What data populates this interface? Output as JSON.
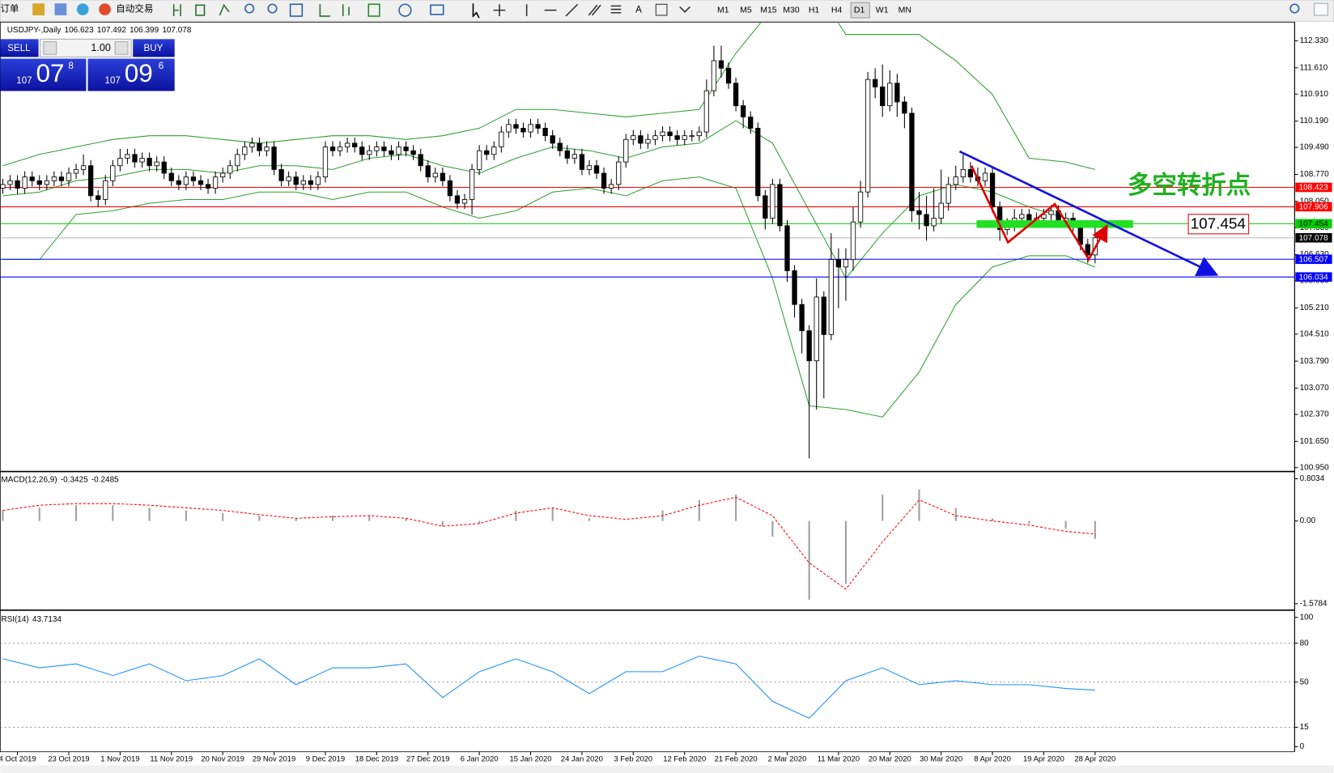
{
  "toolbar": {
    "order": "订单",
    "auto_trade": "自动交易",
    "timeframes": [
      "M1",
      "M5",
      "M15",
      "M30",
      "H1",
      "H4",
      "D1",
      "W1",
      "MN"
    ],
    "active": "D1"
  },
  "trade_panel": {
    "sell": "SELL",
    "lot": "1.00",
    "buy": "BUY",
    "bid": {
      "big": "107",
      "main": "07",
      "pip": "8"
    },
    "ask": {
      "big": "107",
      "main": "09",
      "pip": "6"
    }
  },
  "chart_data": {
    "type": "candlestick",
    "symbol": "USDJPY-,Daily",
    "up_color": "#ffffff",
    "down_color": "#000000",
    "categories": [
      null,
      null,
      "4 Oct 2019",
      null,
      null,
      null,
      null,
      null,
      null,
      "23 Oct 2019",
      null,
      null,
      null,
      null,
      null,
      null,
      "1 Nov 2019",
      null,
      null,
      null,
      null,
      null,
      null,
      "11 Nov 2019",
      null,
      null,
      null,
      null,
      null,
      null,
      "20 Nov 2019",
      null,
      null,
      null,
      null,
      null,
      null,
      "29 Nov 2019",
      null,
      null,
      null,
      null,
      null,
      null,
      "9 Dec 2019",
      null,
      null,
      null,
      null,
      null,
      null,
      "18 Dec 2019",
      null,
      null,
      null,
      null,
      null,
      null,
      "27 Dec 2019",
      null,
      null,
      null,
      null,
      null,
      null,
      "6 Jan 2020",
      null,
      null,
      null,
      null,
      null,
      null,
      "15 Jan 2020",
      null,
      null,
      null,
      null,
      null,
      null,
      "24 Jan 2020",
      null,
      null,
      null,
      null,
      null,
      null,
      "3 Feb 2020",
      null,
      null,
      null,
      null,
      null,
      null,
      "12 Feb 2020",
      null,
      null,
      null,
      null,
      null,
      null,
      "21 Feb 2020",
      null,
      null,
      null,
      null,
      null,
      null,
      "2 Mar 2020",
      null,
      null,
      null,
      null,
      null,
      null,
      "11 Mar 2020",
      null,
      null,
      null,
      null,
      null,
      null,
      "20 Mar 2020",
      null,
      null,
      null,
      null,
      null,
      null,
      "30 Mar 2020",
      null,
      null,
      null,
      null,
      null,
      null,
      "8 Apr 2020",
      null,
      null,
      null,
      null,
      null,
      null,
      "19 Apr 2020",
      null,
      null,
      null,
      null,
      null,
      null,
      "28 Apr 2020"
    ],
    "ohlc": [
      [
        108.4,
        108.65,
        108.25,
        108.5
      ],
      [
        108.5,
        108.75,
        108.35,
        108.6
      ],
      [
        108.6,
        108.75,
        108.25,
        108.4
      ],
      [
        108.4,
        108.85,
        108.25,
        108.7
      ],
      [
        108.7,
        108.85,
        108.45,
        108.6
      ],
      [
        108.6,
        108.75,
        108.35,
        108.5
      ],
      [
        108.5,
        108.75,
        108.35,
        108.6
      ],
      [
        108.6,
        108.85,
        108.45,
        108.7
      ],
      [
        108.7,
        108.85,
        108.45,
        108.6
      ],
      [
        108.6,
        108.95,
        108.45,
        108.8
      ],
      [
        108.8,
        109.05,
        108.65,
        108.9
      ],
      [
        108.9,
        109.3,
        108.75,
        109.0
      ],
      [
        109.0,
        109.15,
        108.05,
        108.2
      ],
      [
        108.2,
        108.35,
        107.9,
        108.1
      ],
      [
        108.1,
        108.75,
        107.95,
        108.6
      ],
      [
        108.6,
        109.15,
        108.45,
        109.0
      ],
      [
        109.0,
        109.45,
        108.85,
        109.2
      ],
      [
        109.2,
        109.45,
        109.05,
        109.3
      ],
      [
        109.3,
        109.45,
        108.95,
        109.1
      ],
      [
        109.1,
        109.35,
        108.95,
        109.2
      ],
      [
        109.2,
        109.35,
        108.85,
        109.0
      ],
      [
        109.0,
        109.25,
        108.85,
        109.1
      ],
      [
        109.1,
        109.25,
        108.65,
        108.8
      ],
      [
        108.8,
        108.95,
        108.45,
        108.6
      ],
      [
        108.6,
        108.75,
        108.35,
        108.5
      ],
      [
        108.5,
        108.85,
        108.35,
        108.7
      ],
      [
        108.7,
        108.85,
        108.45,
        108.6
      ],
      [
        108.6,
        108.75,
        108.35,
        108.5
      ],
      [
        108.5,
        108.65,
        108.25,
        108.4
      ],
      [
        108.4,
        108.85,
        108.25,
        108.7
      ],
      [
        108.7,
        108.95,
        108.55,
        108.8
      ],
      [
        108.8,
        109.15,
        108.65,
        109.0
      ],
      [
        109.0,
        109.45,
        108.85,
        109.3
      ],
      [
        109.3,
        109.65,
        109.15,
        109.5
      ],
      [
        109.5,
        109.75,
        109.35,
        109.6
      ],
      [
        109.6,
        109.75,
        109.25,
        109.4
      ],
      [
        109.4,
        109.65,
        109.25,
        109.5
      ],
      [
        109.5,
        109.65,
        108.75,
        108.9
      ],
      [
        108.9,
        109.05,
        108.45,
        108.6
      ],
      [
        108.6,
        108.85,
        108.45,
        108.7
      ],
      [
        108.7,
        108.85,
        108.35,
        108.5
      ],
      [
        108.5,
        108.75,
        108.35,
        108.6
      ],
      [
        108.6,
        108.75,
        108.35,
        108.5
      ],
      [
        108.5,
        108.85,
        108.35,
        108.7
      ],
      [
        108.7,
        109.65,
        108.55,
        109.5
      ],
      [
        109.5,
        109.65,
        109.25,
        109.4
      ],
      [
        109.4,
        109.65,
        109.25,
        109.5
      ],
      [
        109.5,
        109.75,
        109.35,
        109.6
      ],
      [
        109.6,
        109.75,
        109.35,
        109.5
      ],
      [
        109.5,
        109.65,
        109.15,
        109.3
      ],
      [
        109.3,
        109.55,
        109.15,
        109.4
      ],
      [
        109.4,
        109.65,
        109.25,
        109.5
      ],
      [
        109.5,
        109.65,
        109.25,
        109.4
      ],
      [
        109.4,
        109.55,
        109.15,
        109.3
      ],
      [
        109.3,
        109.65,
        109.15,
        109.5
      ],
      [
        109.5,
        109.65,
        109.25,
        109.4
      ],
      [
        109.4,
        109.55,
        109.15,
        109.3
      ],
      [
        109.3,
        109.45,
        108.85,
        109.0
      ],
      [
        109.0,
        109.15,
        108.55,
        108.7
      ],
      [
        108.7,
        108.95,
        108.55,
        108.8
      ],
      [
        108.8,
        108.95,
        108.45,
        108.6
      ],
      [
        108.6,
        108.75,
        108.05,
        108.2
      ],
      [
        108.2,
        108.35,
        107.85,
        108.0
      ],
      [
        108.0,
        108.25,
        107.85,
        108.1
      ],
      [
        108.1,
        109.05,
        107.7,
        108.9
      ],
      [
        108.9,
        109.55,
        108.75,
        109.4
      ],
      [
        109.4,
        109.55,
        109.15,
        109.3
      ],
      [
        109.3,
        109.65,
        109.15,
        109.5
      ],
      [
        109.5,
        110.05,
        109.35,
        109.9
      ],
      [
        109.9,
        110.25,
        109.75,
        110.1
      ],
      [
        110.1,
        110.25,
        109.85,
        110.0
      ],
      [
        110.0,
        110.15,
        109.75,
        109.9
      ],
      [
        109.9,
        110.25,
        109.75,
        110.1
      ],
      [
        110.1,
        110.25,
        109.85,
        110.0
      ],
      [
        110.0,
        110.15,
        109.65,
        109.8
      ],
      [
        109.8,
        109.95,
        109.45,
        109.6
      ],
      [
        109.6,
        109.75,
        109.25,
        109.4
      ],
      [
        109.4,
        109.55,
        109.05,
        109.2
      ],
      [
        109.2,
        109.45,
        109.05,
        109.3
      ],
      [
        109.3,
        109.45,
        108.75,
        108.9
      ],
      [
        108.9,
        109.15,
        108.75,
        109.0
      ],
      [
        109.0,
        109.15,
        108.65,
        108.8
      ],
      [
        108.8,
        108.95,
        108.25,
        108.4
      ],
      [
        108.4,
        108.65,
        108.25,
        108.5
      ],
      [
        108.5,
        109.25,
        108.35,
        109.1
      ],
      [
        109.1,
        109.85,
        108.95,
        109.7
      ],
      [
        109.7,
        109.95,
        109.55,
        109.8
      ],
      [
        109.8,
        109.95,
        109.45,
        109.6
      ],
      [
        109.6,
        109.85,
        109.45,
        109.7
      ],
      [
        109.7,
        109.95,
        109.55,
        109.8
      ],
      [
        109.8,
        110.05,
        109.65,
        109.9
      ],
      [
        109.9,
        110.05,
        109.65,
        109.8
      ],
      [
        109.8,
        109.95,
        109.55,
        109.7
      ],
      [
        109.7,
        109.95,
        109.55,
        109.8
      ],
      [
        109.8,
        109.95,
        109.65,
        109.8
      ],
      [
        109.8,
        110.05,
        109.65,
        109.9
      ],
      [
        109.9,
        111.3,
        109.75,
        111.0
      ],
      [
        111.0,
        112.2,
        110.85,
        111.8
      ],
      [
        111.8,
        112.2,
        111.35,
        111.6
      ],
      [
        111.6,
        111.75,
        111.05,
        111.2
      ],
      [
        111.2,
        111.35,
        110.45,
        110.6
      ],
      [
        110.6,
        110.75,
        110.0,
        110.3
      ],
      [
        110.3,
        110.45,
        109.85,
        110.0
      ],
      [
        110.0,
        110.15,
        108.05,
        108.2
      ],
      [
        108.2,
        108.35,
        107.3,
        107.6
      ],
      [
        107.6,
        108.65,
        107.45,
        108.5
      ],
      [
        108.5,
        108.65,
        107.25,
        107.4
      ],
      [
        107.4,
        107.55,
        105.9,
        106.2
      ],
      [
        106.2,
        106.35,
        104.95,
        105.3
      ],
      [
        105.3,
        105.45,
        104.0,
        104.6
      ],
      [
        104.6,
        104.75,
        101.2,
        103.8
      ],
      [
        103.8,
        106.0,
        102.5,
        105.5
      ],
      [
        105.5,
        105.65,
        102.8,
        104.5
      ],
      [
        104.5,
        107.2,
        104.35,
        106.5
      ],
      [
        106.5,
        106.8,
        105.2,
        106.3
      ],
      [
        106.3,
        106.8,
        105.4,
        106.5
      ],
      [
        106.5,
        107.9,
        106.2,
        107.5
      ],
      [
        107.5,
        108.6,
        107.35,
        108.3
      ],
      [
        108.3,
        111.5,
        108.15,
        111.3
      ],
      [
        111.3,
        111.6,
        110.8,
        111.1
      ],
      [
        111.1,
        111.7,
        110.3,
        110.6
      ],
      [
        110.6,
        111.55,
        110.45,
        111.2
      ],
      [
        111.2,
        111.45,
        110.3,
        110.7
      ],
      [
        110.7,
        110.85,
        110.0,
        110.4
      ],
      [
        110.4,
        110.55,
        107.5,
        107.8
      ],
      [
        107.8,
        108.3,
        107.3,
        107.7
      ],
      [
        107.7,
        108.2,
        107.0,
        107.4
      ],
      [
        107.4,
        108.4,
        107.25,
        107.6
      ],
      [
        107.6,
        108.9,
        107.45,
        108.0
      ],
      [
        108.0,
        108.7,
        107.8,
        108.5
      ],
      [
        108.5,
        109.0,
        108.35,
        108.7
      ],
      [
        108.7,
        109.3,
        108.55,
        108.9
      ],
      [
        108.9,
        109.1,
        108.55,
        108.7
      ],
      [
        108.7,
        108.95,
        108.45,
        108.6
      ],
      [
        108.6,
        108.95,
        108.45,
        108.8
      ],
      [
        108.8,
        108.95,
        107.75,
        107.9
      ],
      [
        107.9,
        108.05,
        107.0,
        107.3
      ],
      [
        107.3,
        107.6,
        107.15,
        107.4
      ],
      [
        107.4,
        107.85,
        107.25,
        107.6
      ],
      [
        107.6,
        107.85,
        107.45,
        107.7
      ],
      [
        107.7,
        107.85,
        107.35,
        107.5
      ],
      [
        107.5,
        107.75,
        107.35,
        107.6
      ],
      [
        107.6,
        107.85,
        107.45,
        107.7
      ],
      [
        107.7,
        107.95,
        107.55,
        107.8
      ],
      [
        107.8,
        107.95,
        107.35,
        107.5
      ],
      [
        107.5,
        107.75,
        107.35,
        107.6
      ],
      [
        107.6,
        107.75,
        107.25,
        107.4
      ],
      [
        107.4,
        107.55,
        106.75,
        106.9
      ],
      [
        106.9,
        107.05,
        106.4,
        106.62
      ],
      [
        106.623,
        107.492,
        106.399,
        107.078
      ]
    ],
    "ylim": [
      100.881,
      112.806
    ],
    "yticks": [
      {
        "value": 112.33,
        "label": "112.330"
      },
      {
        "value": 111.61,
        "label": "111.610"
      },
      {
        "value": 110.91,
        "label": "110.910"
      },
      {
        "value": 110.19,
        "label": "110.190"
      },
      {
        "value": 109.49,
        "label": "109.490"
      },
      {
        "value": 108.77,
        "label": "108.770"
      },
      {
        "value": 108.05,
        "label": "108.050"
      },
      {
        "value": 107.35,
        "label": "107.350"
      },
      {
        "value": 106.63,
        "label": "106.630"
      },
      {
        "value": 105.93,
        "label": "105.930"
      },
      {
        "value": 105.21,
        "label": "105.210"
      },
      {
        "value": 104.51,
        "label": "104.510"
      },
      {
        "value": 103.79,
        "label": "103.790"
      },
      {
        "value": 103.07,
        "label": "103.070"
      },
      {
        "value": 102.37,
        "label": "102.370"
      },
      {
        "value": 101.65,
        "label": "101.650"
      },
      {
        "value": 100.95,
        "label": "100.950"
      }
    ],
    "levels": [
      {
        "value": 108.423,
        "color": "#ff0000",
        "text_color": "#ffffff"
      },
      {
        "value": 107.906,
        "color": "#ff0000",
        "text_color": "#ffffff"
      },
      {
        "value": 107.454,
        "color": "#00d000",
        "text_color": "#000000"
      },
      {
        "value": 107.078,
        "color": "#c0c0c0",
        "box": "#000000",
        "text_color": "#ffffff"
      },
      {
        "value": 106.507,
        "color": "#0000ff",
        "text_color": "#ffffff"
      },
      {
        "value": 106.034,
        "color": "#0000ff",
        "text_color": "#ffffff"
      }
    ],
    "annotation": "多空转折点",
    "indicator_x": [
      0,
      5,
      10,
      15,
      20,
      25,
      30,
      35,
      40,
      45,
      50,
      55,
      60,
      65,
      70,
      75,
      80,
      85,
      90,
      95,
      100,
      105,
      110,
      115,
      120,
      125,
      130,
      135,
      140,
      145,
      149
    ],
    "bollinger": {
      "color": "#2ca02c",
      "upper": [
        109.0,
        109.3,
        109.5,
        109.7,
        109.8,
        109.8,
        109.7,
        109.6,
        109.7,
        109.8,
        109.8,
        109.7,
        109.8,
        110.0,
        110.5,
        110.5,
        110.4,
        110.3,
        110.4,
        110.5,
        112.0,
        113.2,
        114.0,
        112.5,
        112.5,
        112.5,
        111.8,
        110.9,
        109.2,
        109.1,
        108.9
      ],
      "middle": [
        108.2,
        108.3,
        108.6,
        108.7,
        108.9,
        108.9,
        108.8,
        109.0,
        109.0,
        108.9,
        109.2,
        109.3,
        109.0,
        108.8,
        109.2,
        109.5,
        109.4,
        109.2,
        109.5,
        109.6,
        110.2,
        109.6,
        107.8,
        106.0,
        107.2,
        108.2,
        108.5,
        108.3,
        107.9,
        107.6,
        107.4
      ],
      "lower": [
        106.5,
        106.5,
        107.7,
        107.8,
        108.0,
        108.1,
        108.1,
        108.3,
        108.3,
        108.1,
        108.3,
        108.3,
        107.9,
        107.6,
        107.8,
        108.3,
        108.4,
        108.2,
        108.6,
        108.7,
        108.4,
        106.0,
        102.6,
        102.5,
        102.3,
        103.5,
        105.3,
        106.3,
        106.6,
        106.6,
        106.3
      ]
    },
    "macd": {
      "label": "MACD(12,26,9)",
      "hist_color": "#a0a0a0",
      "signal_color": "#ff0000",
      "histogram": [
        0.2,
        0.25,
        0.3,
        0.3,
        0.25,
        0.2,
        0.15,
        0.1,
        0.05,
        0.1,
        0.1,
        0.05,
        -0.1,
        -0.05,
        0.2,
        0.25,
        0.05,
        0,
        0.2,
        0.4,
        0.5,
        -0.3,
        -1.5,
        -1.2,
        0.5,
        0.6,
        0.25,
        0.05,
        -0.05,
        -0.15,
        -0.3425
      ],
      "signal": [
        0.2,
        0.3,
        0.33,
        0.33,
        0.3,
        0.25,
        0.2,
        0.12,
        0.05,
        0.08,
        0.1,
        0.05,
        -0.1,
        -0.05,
        0.15,
        0.25,
        0.1,
        0.03,
        0.1,
        0.3,
        0.45,
        0.1,
        -0.8,
        -1.3,
        -0.4,
        0.4,
        0.1,
        0,
        -0.08,
        -0.2,
        -0.2485
      ],
      "ylim": [
        -1.676,
        0.917
      ],
      "yticks": [
        0.8034,
        {
          "value": 0,
          "label": "0.00"
        },
        -1.5784
      ]
    },
    "rsi": {
      "label": "RSI(14)",
      "color": "#1e90ff",
      "values": [
        68,
        61,
        64,
        55,
        64,
        51,
        55,
        68,
        48,
        61,
        61,
        64,
        38,
        58,
        68,
        58,
        41,
        58,
        58,
        70,
        64,
        35,
        22,
        51,
        61,
        48,
        51,
        48,
        48,
        45,
        43.7134
      ],
      "ylim": [
        -3.9,
        104.6
      ],
      "yticks": [
        100,
        80,
        50,
        15,
        0
      ],
      "levels": [
        80,
        50,
        15
      ]
    }
  }
}
